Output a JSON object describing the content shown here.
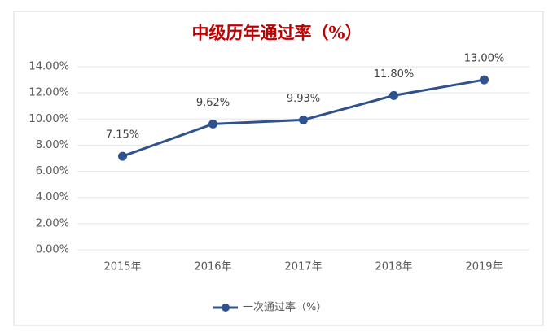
{
  "chart_data": {
    "type": "line",
    "title": "中级历年通过率（%）",
    "categories": [
      "2015年",
      "2016年",
      "2017年",
      "2018年",
      "2019年"
    ],
    "series": [
      {
        "name": "一次通过率（%）",
        "color": "#2f528f",
        "values": [
          7.15,
          9.62,
          9.93,
          11.8,
          13.0
        ],
        "value_labels": [
          "7.15%",
          "9.62%",
          "9.93%",
          "11.80%",
          "13.00%"
        ]
      }
    ],
    "ylim": [
      0,
      14
    ],
    "yticks": [
      {
        "value": 0,
        "label": "0.00%"
      },
      {
        "value": 2,
        "label": "2.00%"
      },
      {
        "value": 4,
        "label": "4.00%"
      },
      {
        "value": 6,
        "label": "6.00%"
      },
      {
        "value": 8,
        "label": "8.00%"
      },
      {
        "value": 10,
        "label": "10.00%"
      },
      {
        "value": 12,
        "label": "12.00%"
      },
      {
        "value": 14,
        "label": "14.00%"
      }
    ],
    "grid": true,
    "legend": "bottom"
  }
}
